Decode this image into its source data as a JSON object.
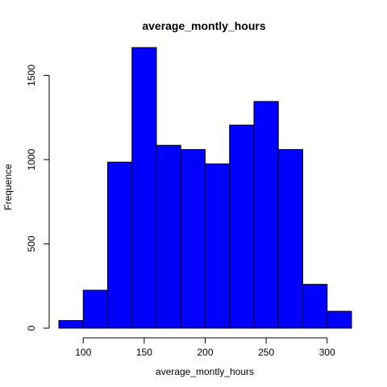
{
  "chart_data": {
    "type": "bar",
    "title": "average_montly_hours",
    "xlabel": "average_montly_hours",
    "ylabel": "Frequence",
    "bins": [
      {
        "start": 80,
        "end": 100,
        "count": 45
      },
      {
        "start": 100,
        "end": 120,
        "count": 225
      },
      {
        "start": 120,
        "end": 140,
        "count": 985
      },
      {
        "start": 140,
        "end": 160,
        "count": 1665
      },
      {
        "start": 160,
        "end": 180,
        "count": 1085
      },
      {
        "start": 180,
        "end": 200,
        "count": 1060
      },
      {
        "start": 200,
        "end": 220,
        "count": 975
      },
      {
        "start": 220,
        "end": 240,
        "count": 1205
      },
      {
        "start": 240,
        "end": 260,
        "count": 1345
      },
      {
        "start": 260,
        "end": 280,
        "count": 1060
      },
      {
        "start": 280,
        "end": 300,
        "count": 260
      },
      {
        "start": 300,
        "end": 320,
        "count": 100
      }
    ],
    "xticks": [
      "100",
      "150",
      "200",
      "250",
      "300"
    ],
    "yticks": [
      "0",
      "500",
      "1000",
      "1500"
    ],
    "xlim": [
      80,
      320
    ],
    "ylim": [
      0,
      1665
    ],
    "bar_color": "#0000ff",
    "grid": false
  }
}
